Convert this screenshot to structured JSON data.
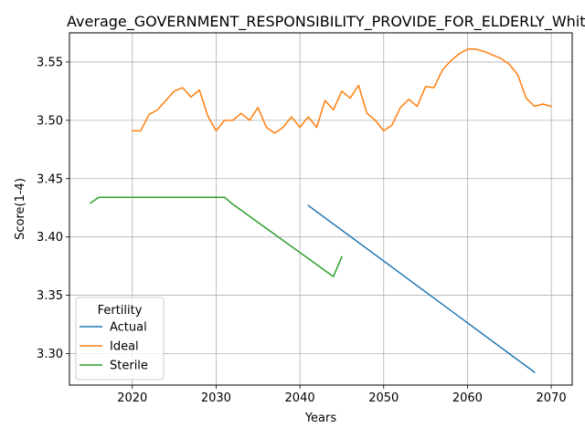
{
  "chart_data": {
    "type": "line",
    "title": "Average_GOVERNMENT_RESPONSIBILITY_PROVIDE_FOR_ELDERLY_White_Q",
    "xlabel": "Years",
    "ylabel": "Score(1-4)",
    "xlim": [
      2012.5,
      2072.5
    ],
    "ylim": [
      3.273,
      3.575
    ],
    "xticks": [
      2020,
      2030,
      2040,
      2050,
      2060,
      2070
    ],
    "yticks": [
      3.3,
      3.35,
      3.4,
      3.45,
      3.5,
      3.55
    ],
    "ytick_labels": [
      "3.30",
      "3.35",
      "3.40",
      "3.45",
      "3.50",
      "3.55"
    ],
    "grid": true,
    "legend": {
      "title": "Fertility",
      "placement": "lower-left"
    },
    "series": [
      {
        "name": "Actual",
        "color": "#1f77b4",
        "x": [
          2041,
          2068
        ],
        "y": [
          3.427,
          3.284
        ]
      },
      {
        "name": "Ideal",
        "color": "#ff7f0e",
        "x": [
          2020,
          2021,
          2022,
          2023,
          2024,
          2025,
          2026,
          2027,
          2028,
          2029,
          2030,
          2031,
          2032,
          2033,
          2034,
          2035,
          2036,
          2037,
          2038,
          2039,
          2040,
          2041,
          2042,
          2043,
          2044,
          2045,
          2046,
          2047,
          2048,
          2049,
          2050,
          2051,
          2052,
          2053,
          2054,
          2055,
          2056,
          2057,
          2058,
          2059,
          2060,
          2061,
          2062,
          2063,
          2064,
          2065,
          2066,
          2067,
          2068,
          2069,
          2070
        ],
        "y": [
          3.491,
          3.491,
          3.505,
          3.509,
          3.517,
          3.525,
          3.528,
          3.52,
          3.526,
          3.504,
          3.491,
          3.5,
          3.5,
          3.506,
          3.5,
          3.511,
          3.494,
          3.489,
          3.494,
          3.503,
          3.494,
          3.503,
          3.494,
          3.517,
          3.509,
          3.525,
          3.519,
          3.53,
          3.506,
          3.5,
          3.491,
          3.496,
          3.511,
          3.518,
          3.512,
          3.529,
          3.528,
          3.543,
          3.551,
          3.557,
          3.561,
          3.561,
          3.559,
          3.556,
          3.553,
          3.548,
          3.539,
          3.519,
          3.512,
          3.514,
          3.512
        ]
      },
      {
        "name": "Sterile",
        "color": "#2ca02c",
        "x": [
          2015,
          2016,
          2031,
          2032,
          2044,
          2045
        ],
        "y": [
          3.429,
          3.434,
          3.434,
          3.428,
          3.366,
          3.383
        ]
      }
    ]
  }
}
